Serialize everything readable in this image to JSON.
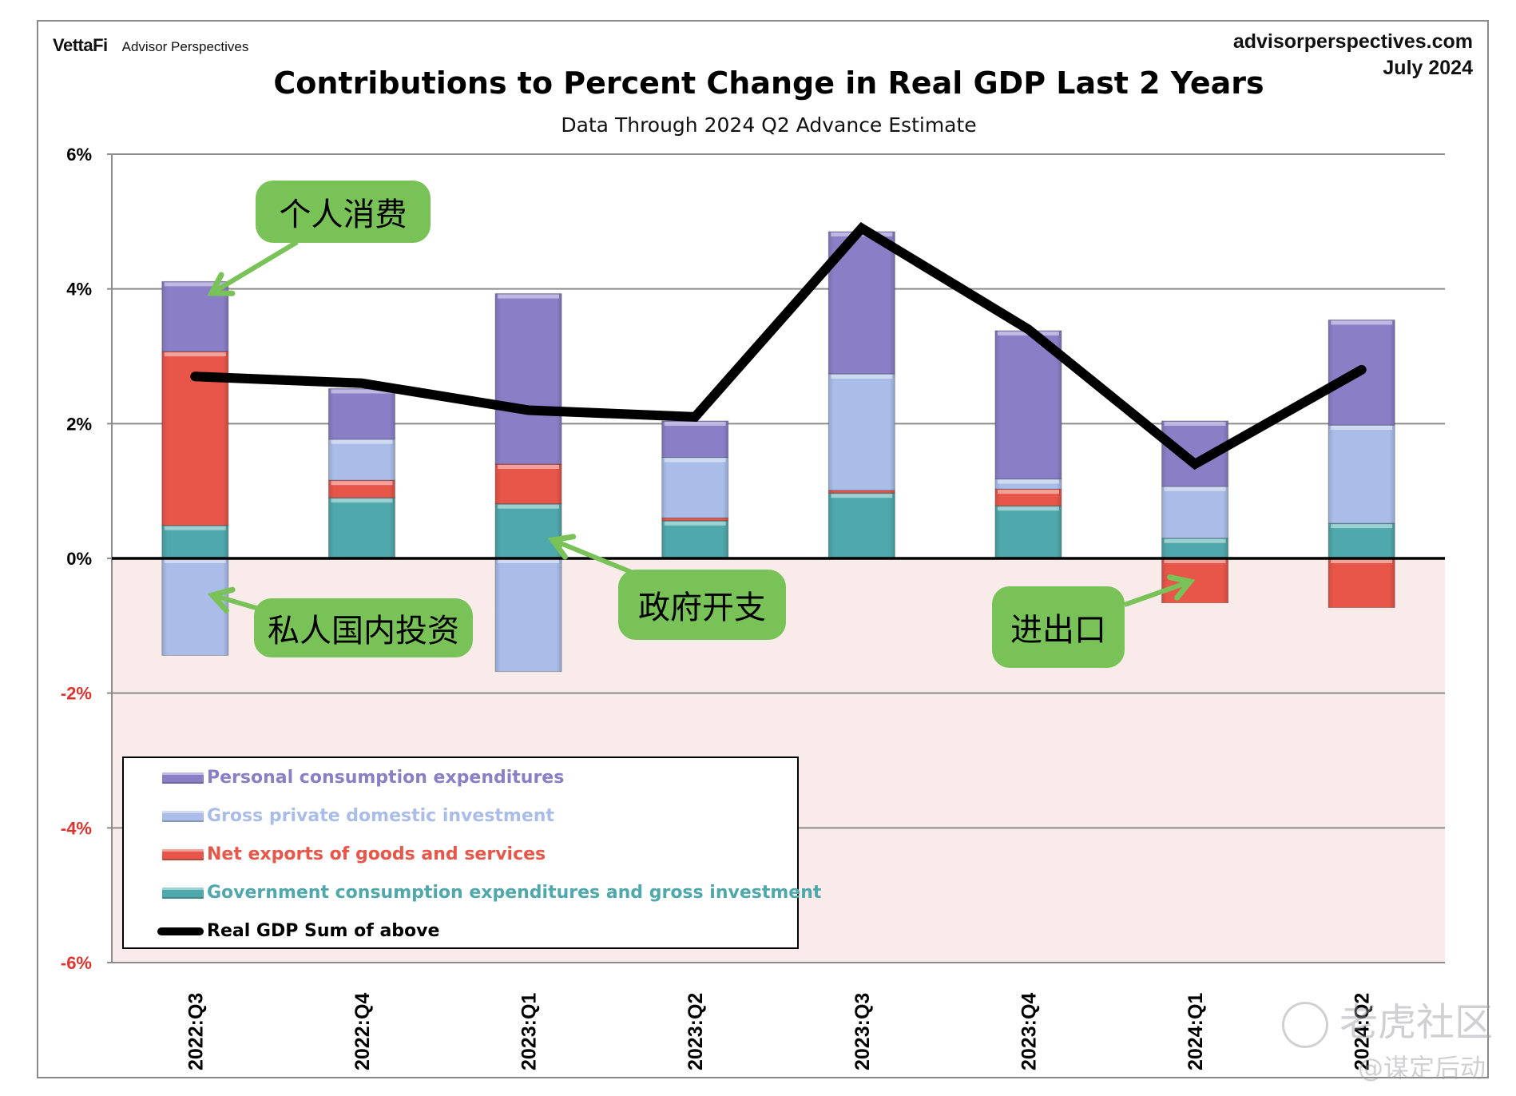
{
  "header": {
    "brand_logo": "VettaFi",
    "brand_name": "Advisor Perspectives",
    "site": "advisorperspectives.com",
    "date": "July 2024"
  },
  "annotations": [
    {
      "id": "pce",
      "label": "个人消费",
      "target": "Personal consumption expenditures"
    },
    {
      "id": "gpdi",
      "label": "私人国内投资",
      "target": "Gross private domestic investment"
    },
    {
      "id": "gov",
      "label": "政府开支",
      "target": "Government consumption expenditures and gross investment"
    },
    {
      "id": "netx",
      "label": "进出口",
      "target": "Net exports of goods and services"
    }
  ],
  "watermark": {
    "line1": "老虎社区",
    "line2": "@谋定后动"
  },
  "colors": {
    "pce": "#8a7fc6",
    "gpdi": "#a9bde8",
    "netx": "#e8564a",
    "gov": "#4fa8ab",
    "line": "#000000",
    "negative_region": "#f9ebea",
    "callout": "#78c257",
    "negative_tick": "#e0322c"
  },
  "chart_data": {
    "type": "bar",
    "stacked": true,
    "title": "Contributions to Percent Change in Real GDP Last 2 Years",
    "subtitle": "Data Through 2024 Q2 Advance Estimate",
    "xlabel": "",
    "ylabel": "",
    "ylim": [
      -6,
      6
    ],
    "yticks": [
      6,
      4,
      2,
      0,
      -2,
      -4,
      -6
    ],
    "ytick_labels": [
      "6%",
      "4%",
      "2%",
      "0%",
      "-2%",
      "-4%",
      "-6%"
    ],
    "grid": true,
    "legend_position": "bottom-left",
    "categories": [
      "2022:Q3",
      "2022:Q4",
      "2023:Q1",
      "2023:Q2",
      "2023:Q3",
      "2023:Q4",
      "2024:Q1",
      "2024:Q2"
    ],
    "series": [
      {
        "key": "gov",
        "name": "Government consumption expenditures and gross investment",
        "values": [
          0.49,
          0.9,
          0.81,
          0.56,
          0.97,
          0.78,
          0.3,
          0.52
        ]
      },
      {
        "key": "netx",
        "name": "Net exports of goods and services",
        "values": [
          2.58,
          0.26,
          0.59,
          0.04,
          0.04,
          0.25,
          -0.66,
          -0.73
        ]
      },
      {
        "key": "gpdi",
        "name": "Gross private domestic investment",
        "values": [
          -1.44,
          0.61,
          -1.68,
          0.9,
          1.73,
          0.15,
          0.77,
          1.46
        ]
      },
      {
        "key": "pce",
        "name": "Personal consumption expenditures",
        "values": [
          1.04,
          0.75,
          2.53,
          0.54,
          2.11,
          2.2,
          0.97,
          1.56
        ]
      }
    ],
    "line_series": {
      "key": "gdp",
      "name": "Real GDP Sum of above",
      "values": [
        2.7,
        2.6,
        2.2,
        2.1,
        4.9,
        3.4,
        1.4,
        2.8
      ]
    },
    "legend_order": [
      {
        "key": "pce",
        "name": "Personal consumption expenditures"
      },
      {
        "key": "gpdi",
        "name": "Gross private domestic investment"
      },
      {
        "key": "netx",
        "name": "Net exports of goods and services"
      },
      {
        "key": "gov",
        "name": "Government consumption expenditures and gross investment"
      },
      {
        "key": "gdp",
        "name": "Real GDP Sum of above"
      }
    ]
  }
}
